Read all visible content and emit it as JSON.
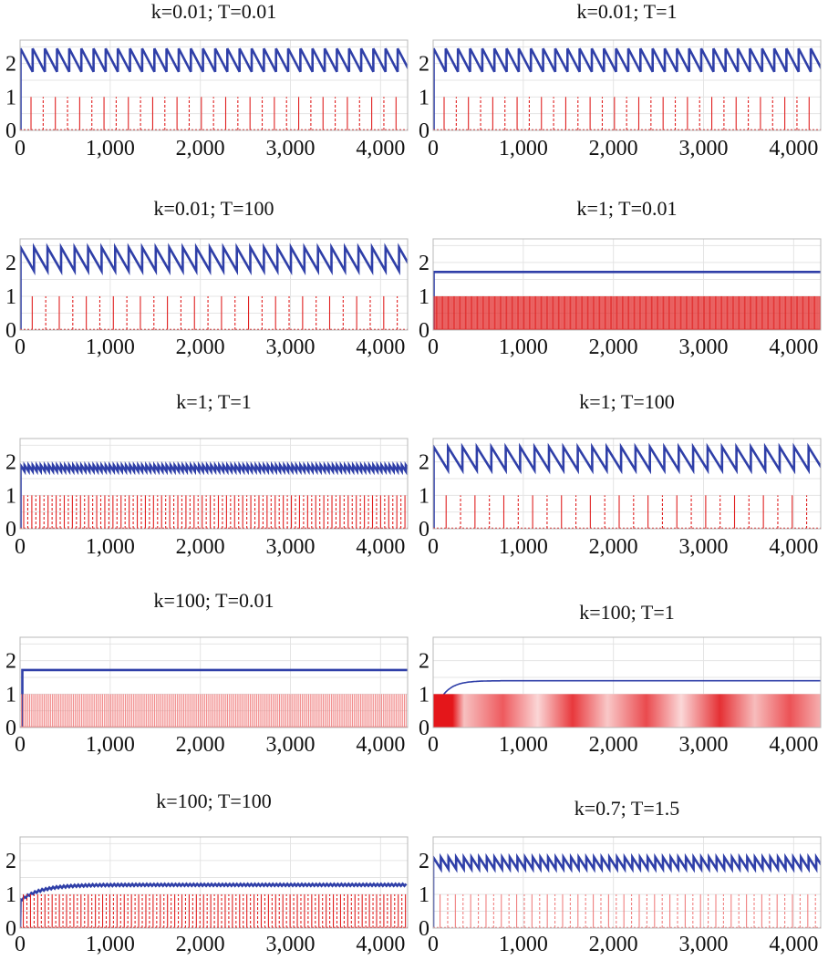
{
  "chart_data": [
    {
      "type": "line",
      "title": "k=0.01; T=0.01",
      "ylim": [
        0,
        2.7
      ],
      "xlim": [
        0,
        4300
      ],
      "yticks": [
        "0",
        "1",
        "2"
      ],
      "xticks": [
        "0",
        "1,000",
        "2,000",
        "3,000",
        "4,000"
      ],
      "grid": true,
      "series": [
        {
          "color": "#2f3fa8",
          "style": "sawtooth",
          "min": 1.75,
          "max": 2.45,
          "period": 135,
          "rise_at": 5
        },
        {
          "color": "#e02020",
          "style": "spikes",
          "height": 1,
          "period": 135,
          "dashed": true
        }
      ]
    },
    {
      "type": "line",
      "title": "k=0.01; T=1",
      "ylim": [
        0,
        2.7
      ],
      "xlim": [
        0,
        4300
      ],
      "yticks": [
        "0",
        "1",
        "2"
      ],
      "xticks": [
        "0",
        "1,000",
        "2,000",
        "3,000",
        "4,000"
      ],
      "grid": true,
      "series": [
        {
          "color": "#2f3fa8",
          "style": "sawtooth",
          "min": 1.75,
          "max": 2.45,
          "period": 135,
          "rise_at": 5
        },
        {
          "color": "#e02020",
          "style": "spikes",
          "height": 1,
          "period": 135,
          "dashed": true
        }
      ]
    },
    {
      "type": "line",
      "title": "k=0.01; T=100",
      "ylim": [
        0,
        2.7
      ],
      "xlim": [
        0,
        4300
      ],
      "yticks": [
        "0",
        "1",
        "2"
      ],
      "xticks": [
        "0",
        "1,000",
        "2,000",
        "3,000",
        "4,000"
      ],
      "grid": true,
      "series": [
        {
          "color": "#2f3fa8",
          "style": "sawtooth",
          "min": 1.75,
          "max": 2.45,
          "period": 150,
          "rise_at": 5
        },
        {
          "color": "#e02020",
          "style": "spikes",
          "height": 1,
          "period": 150,
          "dashed": true
        }
      ]
    },
    {
      "type": "line",
      "title": "k=1; T=0.01",
      "ylim": [
        0,
        2.7
      ],
      "xlim": [
        0,
        4300
      ],
      "yticks": [
        "0",
        "1",
        "2"
      ],
      "xticks": [
        "0",
        "1,000",
        "2,000",
        "3,000",
        "4,000"
      ],
      "grid": true,
      "series": [
        {
          "color": "#2f3fa8",
          "style": "flat",
          "level": 1.72,
          "rise_at": 5
        },
        {
          "color": "#e02020",
          "style": "spikes",
          "height": 1,
          "period": 12,
          "dashed": false
        }
      ]
    },
    {
      "type": "line",
      "title": "k=1; T=1",
      "ylim": [
        0,
        2.7
      ],
      "xlim": [
        0,
        4300
      ],
      "yticks": [
        "0",
        "1",
        "2"
      ],
      "xticks": [
        "0",
        "1,000",
        "2,000",
        "3,000",
        "4,000"
      ],
      "grid": true,
      "series": [
        {
          "color": "#2f3fa8",
          "style": "sawtooth",
          "min": 1.72,
          "max": 1.9,
          "period": 45,
          "rise_at": 5
        },
        {
          "color": "#e02020",
          "style": "spikes",
          "height": 1,
          "period": 45,
          "dashed": true
        }
      ]
    },
    {
      "type": "line",
      "title": "k=1; T=100",
      "ylim": [
        0,
        2.7
      ],
      "xlim": [
        0,
        4300
      ],
      "yticks": [
        "0",
        "1",
        "2"
      ],
      "xticks": [
        "0",
        "1,000",
        "2,000",
        "3,000",
        "4,000"
      ],
      "grid": true,
      "series": [
        {
          "color": "#2f3fa8",
          "style": "sawtooth",
          "min": 1.75,
          "max": 2.45,
          "period": 160,
          "rise_at": 5
        },
        {
          "color": "#e02020",
          "style": "spikes",
          "height": 1,
          "period": 160,
          "dashed": true
        }
      ]
    },
    {
      "type": "line",
      "title": "k=100; T=0.01",
      "ylim": [
        0,
        2.7
      ],
      "xlim": [
        0,
        4300
      ],
      "yticks": [
        "0",
        "1",
        "2"
      ],
      "xticks": [
        "0",
        "1,000",
        "2,000",
        "3,000",
        "4,000"
      ],
      "grid": true,
      "series": [
        {
          "color": "#2f3fa8",
          "style": "flat",
          "level": 1.72,
          "rise_at": 25
        },
        {
          "color": "#e02020",
          "style": "spikes",
          "height": 1,
          "period": 18,
          "dashed": false,
          "light": true
        }
      ]
    },
    {
      "type": "line",
      "title": "k=100; T=1",
      "ylim": [
        0,
        2.7
      ],
      "xlim": [
        0,
        4300
      ],
      "yticks": [
        "0",
        "1",
        "2"
      ],
      "xticks": [
        "0",
        "1,000",
        "2,000",
        "3,000",
        "4,000"
      ],
      "grid": true,
      "series": [
        {
          "color": "#2f3fa8",
          "style": "exp",
          "level": 1.4,
          "tau": 120,
          "start": 1.0,
          "rise_at": 120
        },
        {
          "color": "#e02020",
          "style": "band",
          "height": 1
        }
      ]
    },
    {
      "type": "line",
      "title": "k=100; T=100",
      "ylim": [
        0,
        2.7
      ],
      "xlim": [
        0,
        4300
      ],
      "yticks": [
        "0",
        "1",
        "2"
      ],
      "xticks": [
        "0",
        "1,000",
        "2,000",
        "3,000",
        "4,000"
      ],
      "grid": true,
      "series": [
        {
          "color": "#2f3fa8",
          "style": "exp_saw",
          "level": 1.28,
          "tau": 220,
          "start": 0.82,
          "amp": 0.06,
          "period": 40,
          "rise_at": 5
        },
        {
          "color": "#e02020",
          "style": "spikes",
          "height": 1,
          "period": 40,
          "dashed": true
        }
      ]
    },
    {
      "type": "line",
      "title": "k=0.7; T=1.5",
      "ylim": [
        0,
        2.7
      ],
      "xlim": [
        0,
        4300
      ],
      "yticks": [
        "0",
        "1",
        "2"
      ],
      "xticks": [
        "0",
        "1,000",
        "2,000",
        "3,000",
        "4,000"
      ],
      "grid": true,
      "series": [
        {
          "color": "#2f3fa8",
          "style": "sawtooth",
          "min": 1.75,
          "max": 2.1,
          "period": 85,
          "rise_at": 0,
          "start": 1.75
        },
        {
          "color": "#e02020",
          "style": "spikes",
          "height": 1,
          "period": 85,
          "dashed": true,
          "light": true
        }
      ]
    }
  ]
}
